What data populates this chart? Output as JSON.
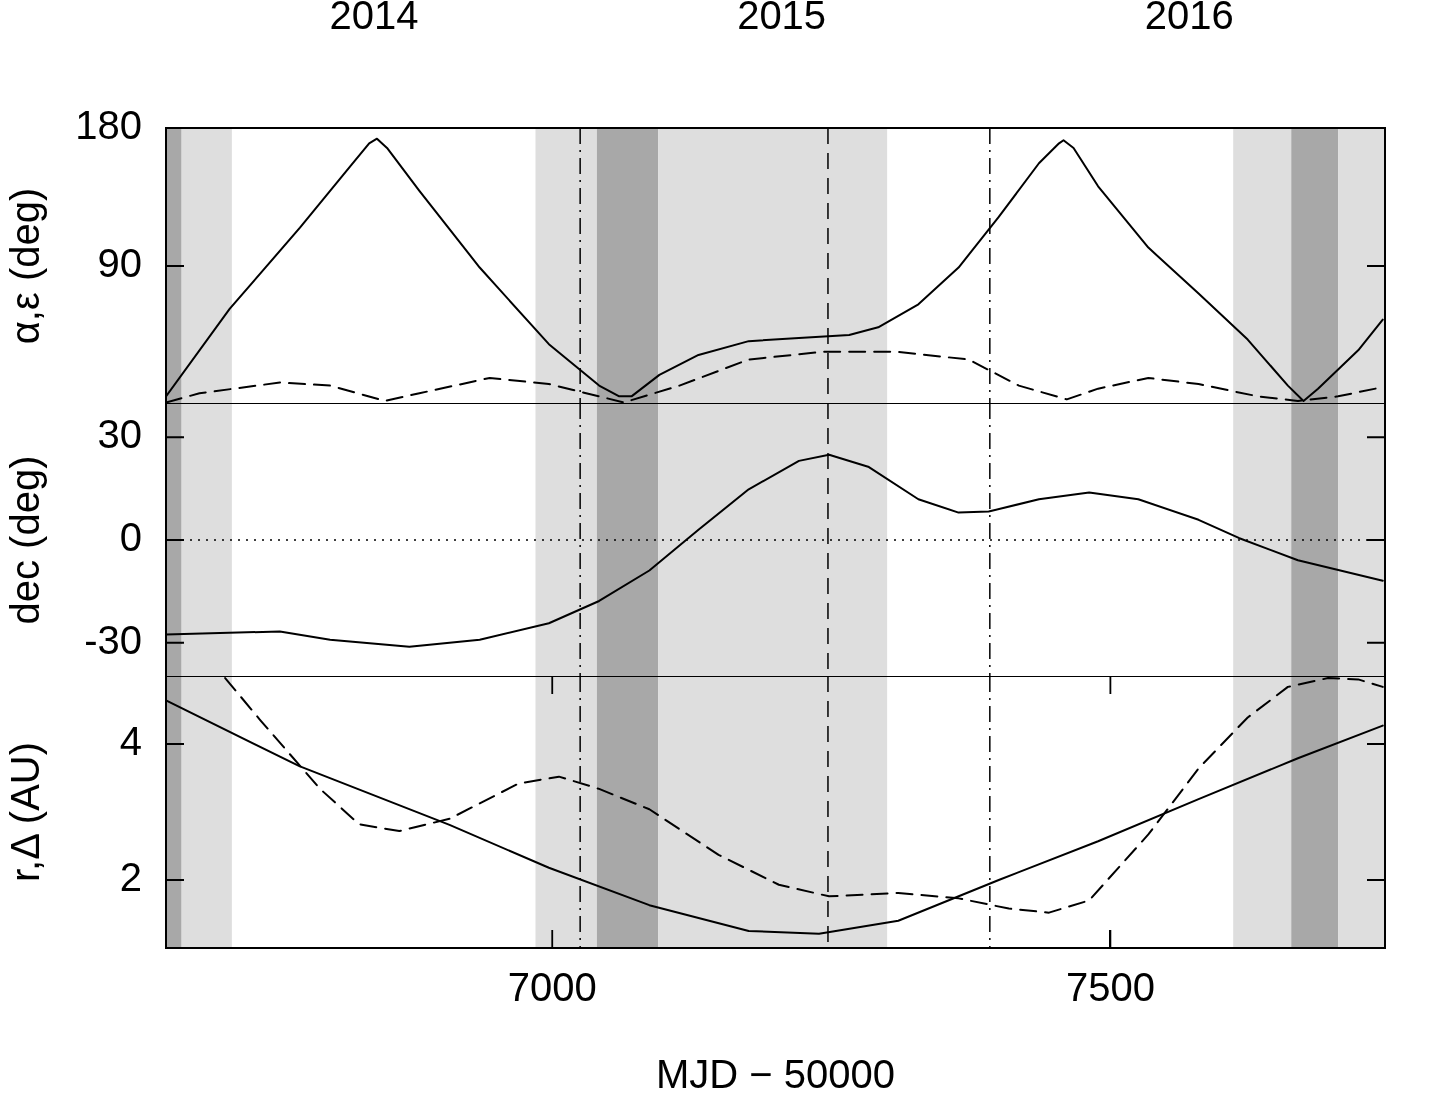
{
  "chart_data": [
    {
      "type": "line",
      "ylabel": "α,ε (deg)",
      "xlim": [
        6654,
        7746
      ],
      "x2lim": [
        2013.99,
        2016.98
      ],
      "x2ticks": [
        {
          "value": 2014.5,
          "label": "2014"
        },
        {
          "value": 2015.5,
          "label": "2015"
        },
        {
          "value": 2016.5,
          "label": "2016"
        }
      ],
      "ylim": [
        0,
        180
      ],
      "yticks": [
        90,
        180
      ],
      "tick_labels": "y",
      "series": [
        {
          "color": "#000000",
          "line_style": "solid",
          "x": [
            6654,
            6711,
            6774,
            6819,
            6836,
            6843,
            6852,
            6881,
            6935,
            6997,
            7042,
            7060,
            7071,
            7096,
            7131,
            7176,
            7221,
            7266,
            7292,
            7328,
            7364,
            7400,
            7436,
            7454,
            7458,
            7467,
            7489,
            7534,
            7579,
            7623,
            7659,
            7673,
            7686,
            7722,
            7744
          ],
          "values": [
            5,
            62,
            115,
            155,
            170,
            173,
            167,
            139,
            89,
            39,
            12,
            5,
            5,
            19,
            32,
            41,
            43,
            45,
            50,
            65,
            89,
            122,
            157,
            170,
            172,
            167,
            142,
            102,
            72,
            42,
            12,
            2,
            10,
            35,
            55
          ]
        },
        {
          "color": "#000000",
          "line_style": "dashed",
          "x": [
            6654,
            6684,
            6756,
            6801,
            6850,
            6881,
            6944,
            6997,
            7042,
            7064,
            7114,
            7176,
            7242,
            7310,
            7373,
            7418,
            7461,
            7489,
            7534,
            7579,
            7632,
            7668,
            7704,
            7744
          ],
          "values": [
            1,
            7,
            14,
            12,
            2,
            7,
            17,
            13,
            5,
            1,
            12,
            29,
            34,
            34,
            29,
            12,
            3,
            10,
            17,
            13,
            5,
            2,
            5,
            11
          ]
        }
      ],
      "bands": [
        {
          "axis": "x",
          "from": 6654,
          "to": 6668,
          "color": "#a8a8a8"
        },
        {
          "axis": "x",
          "from": 6668,
          "to": 6713,
          "color": "#dedede"
        },
        {
          "axis": "x",
          "from": 6985,
          "to": 7040,
          "color": "#dedede"
        },
        {
          "axis": "x",
          "from": 7040,
          "to": 7095,
          "color": "#a8a8a8"
        },
        {
          "axis": "x",
          "from": 7095,
          "to": 7300,
          "color": "#dedede"
        },
        {
          "axis": "x",
          "from": 7610,
          "to": 7662,
          "color": "#dedede"
        },
        {
          "axis": "x",
          "from": 7662,
          "to": 7704,
          "color": "#a8a8a8"
        },
        {
          "axis": "x",
          "from": 7704,
          "to": 7746,
          "color": "#dedede"
        }
      ],
      "ref_lines": [
        {
          "axis": "x",
          "value": 7025,
          "color": "#000000",
          "line_style": "dashdot"
        },
        {
          "axis": "x",
          "value": 7247,
          "color": "#000000",
          "line_style": "dashed"
        },
        {
          "axis": "x",
          "value": 7392,
          "color": "#000000",
          "line_style": "dashdot"
        }
      ]
    },
    {
      "type": "line",
      "ylabel": "dec (deg)",
      "xlim": [
        6654,
        7746
      ],
      "ylim": [
        -40,
        40
      ],
      "yticks": [
        -30,
        0,
        30
      ],
      "tick_labels": "y",
      "series": [
        {
          "color": "#000000",
          "line_style": "solid",
          "x": [
            6654,
            6756,
            6801,
            6872,
            6935,
            6997,
            7042,
            7087,
            7131,
            7176,
            7221,
            7248,
            7283,
            7328,
            7364,
            7391,
            7436,
            7481,
            7525,
            7579,
            7615,
            7668,
            7744
          ],
          "values": [
            -27.6,
            -26.7,
            -29.1,
            -31.2,
            -29.1,
            -24.3,
            -17.8,
            -8.9,
            3,
            14.8,
            23.1,
            24.9,
            21.4,
            11.9,
            8,
            8.3,
            11.9,
            13.9,
            11.9,
            5.9,
            0.6,
            -5.9,
            -11.9
          ]
        }
      ],
      "bands": [
        {
          "axis": "x",
          "from": 6654,
          "to": 6668,
          "color": "#a8a8a8"
        },
        {
          "axis": "x",
          "from": 6668,
          "to": 6713,
          "color": "#dedede"
        },
        {
          "axis": "x",
          "from": 6985,
          "to": 7040,
          "color": "#dedede"
        },
        {
          "axis": "x",
          "from": 7040,
          "to": 7095,
          "color": "#a8a8a8"
        },
        {
          "axis": "x",
          "from": 7095,
          "to": 7300,
          "color": "#dedede"
        },
        {
          "axis": "x",
          "from": 7610,
          "to": 7662,
          "color": "#dedede"
        },
        {
          "axis": "x",
          "from": 7662,
          "to": 7704,
          "color": "#a8a8a8"
        },
        {
          "axis": "x",
          "from": 7704,
          "to": 7746,
          "color": "#dedede"
        }
      ],
      "ref_lines": [
        {
          "axis": "x",
          "value": 7025,
          "color": "#000000",
          "line_style": "dashdot"
        },
        {
          "axis": "x",
          "value": 7247,
          "color": "#000000",
          "line_style": "dashed"
        },
        {
          "axis": "x",
          "value": 7392,
          "color": "#000000",
          "line_style": "dashdot"
        },
        {
          "axis": "y",
          "value": 0,
          "color": "#000000",
          "line_style": "dotted"
        }
      ]
    },
    {
      "type": "line",
      "ylabel": "r,Δ (AU)",
      "xlabel": "MJD − 50000",
      "xlim": [
        6654,
        7746
      ],
      "xticks": [
        7000,
        7500
      ],
      "ylim": [
        1,
        5
      ],
      "yticks": [
        2,
        4
      ],
      "series": [
        {
          "color": "#000000",
          "line_style": "solid",
          "x": [
            6654,
            6774,
            6908,
            6997,
            7087,
            7176,
            7239,
            7310,
            7400,
            7489,
            7579,
            7668,
            7744
          ],
          "values": [
            4.64,
            3.67,
            2.81,
            2.18,
            1.63,
            1.25,
            1.21,
            1.4,
            2,
            2.57,
            3.19,
            3.79,
            4.27
          ]
        },
        {
          "color": "#000000",
          "line_style": "dashed",
          "x": [
            6707,
            6738,
            6792,
            6827,
            6863,
            6908,
            6970,
            7006,
            7042,
            7087,
            7149,
            7203,
            7248,
            7310,
            7364,
            7409,
            7445,
            7481,
            7534,
            7579,
            7623,
            7659,
            7695,
            7722,
            7744
          ],
          "values": [
            4.97,
            4.36,
            3.34,
            2.82,
            2.72,
            2.9,
            3.42,
            3.52,
            3.34,
            3.04,
            2.37,
            1.93,
            1.76,
            1.81,
            1.73,
            1.58,
            1.52,
            1.7,
            2.67,
            3.64,
            4.39,
            4.84,
            4.97,
            4.95,
            4.84
          ]
        }
      ],
      "bands": [
        {
          "axis": "x",
          "from": 6654,
          "to": 6668,
          "color": "#a8a8a8"
        },
        {
          "axis": "x",
          "from": 6668,
          "to": 6713,
          "color": "#dedede"
        },
        {
          "axis": "x",
          "from": 6985,
          "to": 7040,
          "color": "#dedede"
        },
        {
          "axis": "x",
          "from": 7040,
          "to": 7095,
          "color": "#a8a8a8"
        },
        {
          "axis": "x",
          "from": 7095,
          "to": 7300,
          "color": "#dedede"
        },
        {
          "axis": "x",
          "from": 7610,
          "to": 7662,
          "color": "#dedede"
        },
        {
          "axis": "x",
          "from": 7662,
          "to": 7704,
          "color": "#a8a8a8"
        },
        {
          "axis": "x",
          "from": 7704,
          "to": 7746,
          "color": "#dedede"
        }
      ],
      "ref_lines": [
        {
          "axis": "x",
          "value": 7025,
          "color": "#000000",
          "line_style": "dashdot"
        },
        {
          "axis": "x",
          "value": 7247,
          "color": "#000000",
          "line_style": "dashed"
        },
        {
          "axis": "x",
          "value": 7392,
          "color": "#000000",
          "line_style": "dashdot"
        }
      ]
    }
  ]
}
